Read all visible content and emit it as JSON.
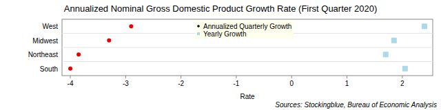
{
  "chart_data": {
    "type": "scatter",
    "orientation": "horizontal",
    "title": "Annualized Nominal Gross Domestic Product Growth Rate (First Quarter 2020)",
    "x_label": "Rate",
    "annotation": "Sources: Stockingblue, Bureau of Economic Analysis",
    "categories": [
      "West",
      "Midwest",
      "Northeast",
      "South"
    ],
    "series": [
      {
        "name": "Annualized Quarterly Growth",
        "color": "#ee0000",
        "marker": "circle",
        "values": [
          -2.9,
          -3.3,
          -3.85,
          -4.0
        ]
      },
      {
        "name": "Yearly Growth",
        "color": "#add8e6",
        "marker": "square",
        "values": [
          2.4,
          1.85,
          1.7,
          2.05
        ]
      }
    ],
    "xlim": [
      -4.15,
      2.55
    ],
    "xticks": [
      -4,
      -3,
      -2,
      -1,
      0,
      1,
      2
    ],
    "legend": "top",
    "grid": false
  }
}
